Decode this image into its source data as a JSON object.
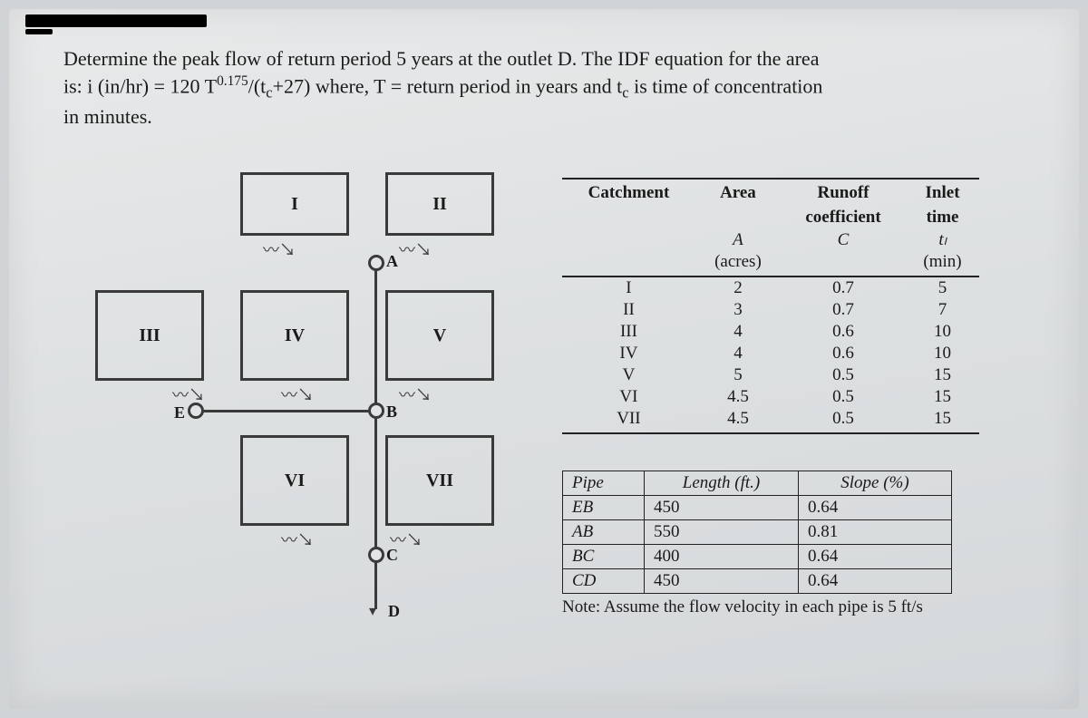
{
  "problem": {
    "line1_a": "Determine the peak flow of return period 5 years at the outlet D.  The IDF equation for the area",
    "line2_a": "is: i (in/hr) = 120 T",
    "line2_sup": "0.175",
    "line2_b": "/(t",
    "line2_sub": "c",
    "line2_c": "+27)   where, T = return period in years and t",
    "line2_sub2": "c",
    "line2_d": " is time of concentration",
    "line3": "in minutes."
  },
  "diagram": {
    "cells": {
      "I": "I",
      "II": "II",
      "III": "III",
      "IV": "IV",
      "V": "V",
      "VI": "VI",
      "VII": "VII"
    },
    "nodes": {
      "A": "A",
      "B": "B",
      "C": "C",
      "D": "D",
      "E": "E"
    }
  },
  "catch": {
    "head": {
      "c1": "Catchment",
      "c2": "Area",
      "c3": "Runoff",
      "c3b": "coefficient",
      "c4": "Inlet",
      "c4b": "time",
      "u2": "A",
      "u2b": "(acres)",
      "u3": "C",
      "u4": "tₗ",
      "u4b": "(min)"
    },
    "rows": [
      {
        "catchment": "I",
        "area": "2",
        "c": "0.7",
        "t": "5"
      },
      {
        "catchment": "II",
        "area": "3",
        "c": "0.7",
        "t": "7"
      },
      {
        "catchment": "III",
        "area": "4",
        "c": "0.6",
        "t": "10"
      },
      {
        "catchment": "IV",
        "area": "4",
        "c": "0.6",
        "t": "10"
      },
      {
        "catchment": "V",
        "area": "5",
        "c": "0.5",
        "t": "15"
      },
      {
        "catchment": "VI",
        "area": "4.5",
        "c": "0.5",
        "t": "15"
      },
      {
        "catchment": "VII",
        "area": "4.5",
        "c": "0.5",
        "t": "15"
      }
    ]
  },
  "pipe": {
    "head": {
      "c1": "Pipe",
      "c2": "Length (ft.)",
      "c3": "Slope (%)"
    },
    "rows": [
      {
        "pipe": "EB",
        "len": "450",
        "slope": "0.64"
      },
      {
        "pipe": "AB",
        "len": "550",
        "slope": "0.81"
      },
      {
        "pipe": "BC",
        "len": "400",
        "slope": "0.64"
      },
      {
        "pipe": "CD",
        "len": "450",
        "slope": "0.64"
      }
    ],
    "note": "Note: Assume the flow velocity in each pipe is 5 ft/s"
  }
}
